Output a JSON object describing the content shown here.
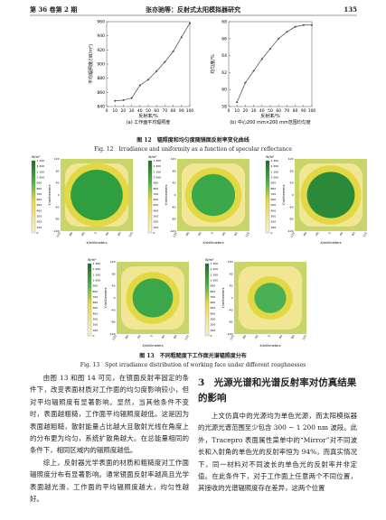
{
  "header": {
    "left": "第 36 卷第 2 期",
    "center": "张亦驰等：反射式太阳模拟器研究",
    "page": "135"
  },
  "chart_data": [
    {
      "type": "line",
      "x": [
        10,
        20,
        30,
        40,
        50,
        60,
        70,
        80,
        90,
        100
      ],
      "values": [
        848,
        849,
        852,
        870,
        878,
        890,
        903,
        918,
        938,
        958
      ],
      "color": "#444444",
      "xlim": [
        0,
        100
      ],
      "ylim": [
        840,
        960
      ],
      "xticks": [
        0,
        10,
        20,
        30,
        40,
        50,
        60,
        70,
        80,
        90,
        100
      ],
      "yticks": [
        840,
        860,
        880,
        900,
        920,
        940,
        960
      ],
      "xlabel": "反射率/%",
      "ylabel": "平均辐照度/(W/m²)",
      "caption": "(a) 工作面平均辐照度"
    },
    {
      "type": "line",
      "x": [
        10,
        20,
        30,
        40,
        50,
        60,
        70,
        80,
        90,
        100
      ],
      "values": [
        58.5,
        60.8,
        62.2,
        63.6,
        64.8,
        66,
        66.8,
        67.4,
        67.6,
        67.6
      ],
      "color": "#444444",
      "xlim": [
        0,
        100
      ],
      "ylim": [
        58,
        68
      ],
      "xticks": [
        0,
        10,
        20,
        30,
        40,
        50,
        60,
        70,
        80,
        90,
        100
      ],
      "yticks": [
        58,
        60,
        62,
        64,
        66,
        68
      ],
      "xlabel": "反射率/%",
      "ylabel": "均匀度/%",
      "caption": "(b) 中心200 mm×200 mm范围均匀度"
    }
  ],
  "figure12": {
    "caption_cn": "图 12　辐照度和均匀度随镜面反射率变化曲线",
    "caption_en": "Fig. 12　Irradiance and uniformity as a function of specular reflectance"
  },
  "figure13": {
    "unit": "W/m²",
    "colorbar_labels": [
      "1 300",
      "1 200",
      "1 100",
      "1 000",
      "900",
      "800",
      "700",
      "600",
      "500",
      "400",
      "300",
      "200",
      "100",
      "0"
    ],
    "y_ticks": [
      120,
      80,
      40,
      0,
      -40,
      -80,
      -120
    ],
    "x_ticks": [
      -120,
      -80,
      -40,
      0,
      40,
      80,
      120
    ],
    "y_label": "Y/millimeters",
    "x_label": "X/millimeters",
    "caption_cn": "图 13　不同粗糙度下工作面光谱辐照度分布",
    "caption_en": "Fig. 13　Spot irradiance distribution of working face under different roughnesses"
  },
  "body": {
    "left_paragraphs": [
      "由图 13 和图 14 可见，在镜面反射率固定的条件下，改变表面材质对工作面的均匀度影响较小，但对平均辐照度有显著影响。显然，当其他条件不变时，表面越粗糙，工作面平均辐照度越低。这是因为表面越粗糙，散射能量占比越大且散射光线在角度上的分布更为均匀，系统扩散角越大。在总能量相同的条件下，相同区域内的辐照度越低。",
      "综上，反射器光学表面的材质和粗糙度对工作面辐照度分布有显著影响。通常镜面反射率越高且光学表面越光滑，工作面的平均辐照度越大，均匀性越好。"
    ],
    "section_title": "3　光源光谱和光谱反射率对仿真结果的影响",
    "right_paragraph": "上文仿真中的光源均为单色光源，而太阳模拟器的光源光谱范围至少包含 300 ~ 1 200 nm 波段。此外，Tracepro 表面属性菜单中的“Mirror”对不同波长和入射角的单色光的反射率恒为 94%，而真实情况下，同一材料对不同波长的单色光的反射率并非定值。在此条件下，对于工作面上任意两个不同位置，其接收的光谱辐照度存在差异，这两个位置"
  }
}
